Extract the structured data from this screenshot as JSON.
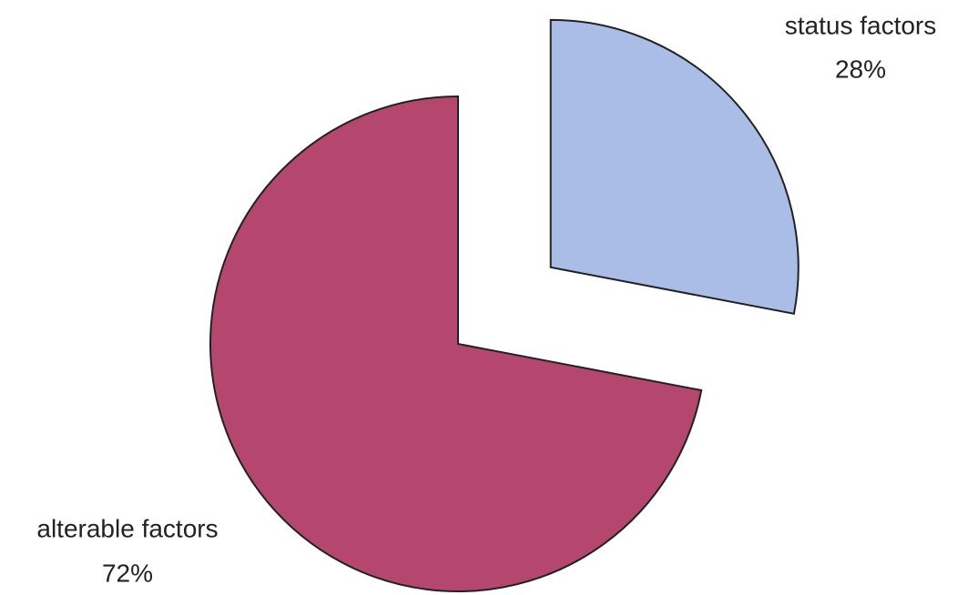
{
  "chart_data": {
    "type": "pie",
    "categories": [
      "status factors",
      "alterable factors"
    ],
    "values": [
      28,
      72
    ],
    "value_labels": [
      "28%",
      "72%"
    ],
    "colors": [
      "#a9bde6",
      "#b5476e"
    ],
    "explode": [
      true,
      false
    ]
  }
}
